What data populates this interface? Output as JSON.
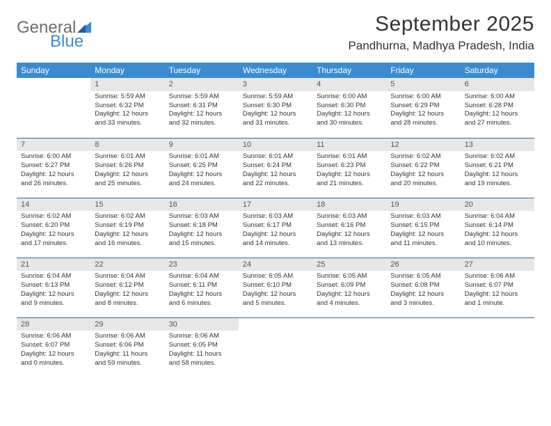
{
  "logo": {
    "text1": "General",
    "text2": "Blue"
  },
  "title": "September 2025",
  "location": "Pandhurna, Madhya Pradesh, India",
  "colors": {
    "header_bg": "#3a8bd0",
    "header_text": "#ffffff",
    "daynum_bg": "#e7e7e7",
    "daynum_text": "#555555",
    "body_text": "#333333",
    "row_border": "#2e6aa0",
    "page_bg": "#ffffff"
  },
  "weekdays": [
    "Sunday",
    "Monday",
    "Tuesday",
    "Wednesday",
    "Thursday",
    "Friday",
    "Saturday"
  ],
  "weeks": [
    [
      {
        "empty": true
      },
      {
        "num": "1",
        "sunrise": "Sunrise: 5:59 AM",
        "sunset": "Sunset: 6:32 PM",
        "daylight": "Daylight: 12 hours and 33 minutes."
      },
      {
        "num": "2",
        "sunrise": "Sunrise: 5:59 AM",
        "sunset": "Sunset: 6:31 PM",
        "daylight": "Daylight: 12 hours and 32 minutes."
      },
      {
        "num": "3",
        "sunrise": "Sunrise: 5:59 AM",
        "sunset": "Sunset: 6:30 PM",
        "daylight": "Daylight: 12 hours and 31 minutes."
      },
      {
        "num": "4",
        "sunrise": "Sunrise: 6:00 AM",
        "sunset": "Sunset: 6:30 PM",
        "daylight": "Daylight: 12 hours and 30 minutes."
      },
      {
        "num": "5",
        "sunrise": "Sunrise: 6:00 AM",
        "sunset": "Sunset: 6:29 PM",
        "daylight": "Daylight: 12 hours and 28 minutes."
      },
      {
        "num": "6",
        "sunrise": "Sunrise: 6:00 AM",
        "sunset": "Sunset: 6:28 PM",
        "daylight": "Daylight: 12 hours and 27 minutes."
      }
    ],
    [
      {
        "num": "7",
        "sunrise": "Sunrise: 6:00 AM",
        "sunset": "Sunset: 6:27 PM",
        "daylight": "Daylight: 12 hours and 26 minutes."
      },
      {
        "num": "8",
        "sunrise": "Sunrise: 6:01 AM",
        "sunset": "Sunset: 6:26 PM",
        "daylight": "Daylight: 12 hours and 25 minutes."
      },
      {
        "num": "9",
        "sunrise": "Sunrise: 6:01 AM",
        "sunset": "Sunset: 6:25 PM",
        "daylight": "Daylight: 12 hours and 24 minutes."
      },
      {
        "num": "10",
        "sunrise": "Sunrise: 6:01 AM",
        "sunset": "Sunset: 6:24 PM",
        "daylight": "Daylight: 12 hours and 22 minutes."
      },
      {
        "num": "11",
        "sunrise": "Sunrise: 6:01 AM",
        "sunset": "Sunset: 6:23 PM",
        "daylight": "Daylight: 12 hours and 21 minutes."
      },
      {
        "num": "12",
        "sunrise": "Sunrise: 6:02 AM",
        "sunset": "Sunset: 6:22 PM",
        "daylight": "Daylight: 12 hours and 20 minutes."
      },
      {
        "num": "13",
        "sunrise": "Sunrise: 6:02 AM",
        "sunset": "Sunset: 6:21 PM",
        "daylight": "Daylight: 12 hours and 19 minutes."
      }
    ],
    [
      {
        "num": "14",
        "sunrise": "Sunrise: 6:02 AM",
        "sunset": "Sunset: 6:20 PM",
        "daylight": "Daylight: 12 hours and 17 minutes."
      },
      {
        "num": "15",
        "sunrise": "Sunrise: 6:02 AM",
        "sunset": "Sunset: 6:19 PM",
        "daylight": "Daylight: 12 hours and 16 minutes."
      },
      {
        "num": "16",
        "sunrise": "Sunrise: 6:03 AM",
        "sunset": "Sunset: 6:18 PM",
        "daylight": "Daylight: 12 hours and 15 minutes."
      },
      {
        "num": "17",
        "sunrise": "Sunrise: 6:03 AM",
        "sunset": "Sunset: 6:17 PM",
        "daylight": "Daylight: 12 hours and 14 minutes."
      },
      {
        "num": "18",
        "sunrise": "Sunrise: 6:03 AM",
        "sunset": "Sunset: 6:16 PM",
        "daylight": "Daylight: 12 hours and 13 minutes."
      },
      {
        "num": "19",
        "sunrise": "Sunrise: 6:03 AM",
        "sunset": "Sunset: 6:15 PM",
        "daylight": "Daylight: 12 hours and 11 minutes."
      },
      {
        "num": "20",
        "sunrise": "Sunrise: 6:04 AM",
        "sunset": "Sunset: 6:14 PM",
        "daylight": "Daylight: 12 hours and 10 minutes."
      }
    ],
    [
      {
        "num": "21",
        "sunrise": "Sunrise: 6:04 AM",
        "sunset": "Sunset: 6:13 PM",
        "daylight": "Daylight: 12 hours and 9 minutes."
      },
      {
        "num": "22",
        "sunrise": "Sunrise: 6:04 AM",
        "sunset": "Sunset: 6:12 PM",
        "daylight": "Daylight: 12 hours and 8 minutes."
      },
      {
        "num": "23",
        "sunrise": "Sunrise: 6:04 AM",
        "sunset": "Sunset: 6:11 PM",
        "daylight": "Daylight: 12 hours and 6 minutes."
      },
      {
        "num": "24",
        "sunrise": "Sunrise: 6:05 AM",
        "sunset": "Sunset: 6:10 PM",
        "daylight": "Daylight: 12 hours and 5 minutes."
      },
      {
        "num": "25",
        "sunrise": "Sunrise: 6:05 AM",
        "sunset": "Sunset: 6:09 PM",
        "daylight": "Daylight: 12 hours and 4 minutes."
      },
      {
        "num": "26",
        "sunrise": "Sunrise: 6:05 AM",
        "sunset": "Sunset: 6:08 PM",
        "daylight": "Daylight: 12 hours and 3 minutes."
      },
      {
        "num": "27",
        "sunrise": "Sunrise: 6:06 AM",
        "sunset": "Sunset: 6:07 PM",
        "daylight": "Daylight: 12 hours and 1 minute."
      }
    ],
    [
      {
        "num": "28",
        "sunrise": "Sunrise: 6:06 AM",
        "sunset": "Sunset: 6:07 PM",
        "daylight": "Daylight: 12 hours and 0 minutes."
      },
      {
        "num": "29",
        "sunrise": "Sunrise: 6:06 AM",
        "sunset": "Sunset: 6:06 PM",
        "daylight": "Daylight: 11 hours and 59 minutes."
      },
      {
        "num": "30",
        "sunrise": "Sunrise: 6:06 AM",
        "sunset": "Sunset: 6:05 PM",
        "daylight": "Daylight: 11 hours and 58 minutes."
      },
      {
        "empty": true
      },
      {
        "empty": true
      },
      {
        "empty": true
      },
      {
        "empty": true
      }
    ]
  ]
}
